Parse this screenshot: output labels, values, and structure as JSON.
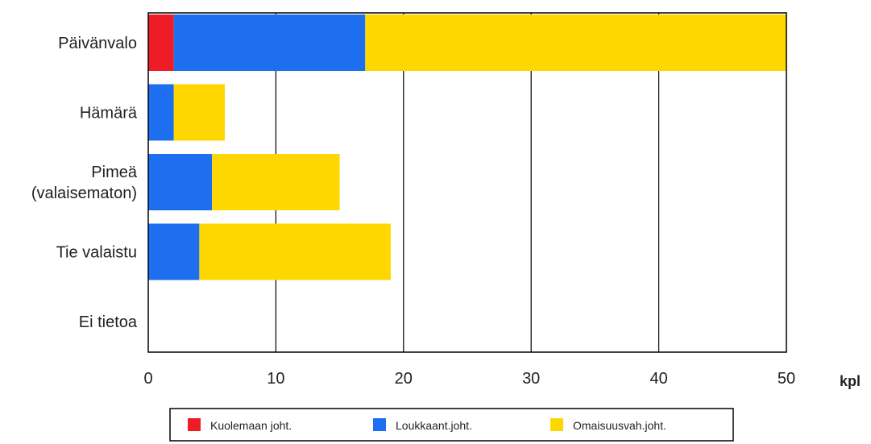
{
  "chart_data": {
    "type": "bar",
    "orientation": "horizontal",
    "stacked": true,
    "categories": [
      [
        "Päivänvalo"
      ],
      [
        "Hämärä"
      ],
      [
        "Pimeä",
        "(valaisematon)"
      ],
      [
        "Tie valaistu"
      ],
      [
        "Ei tietoa"
      ]
    ],
    "series": [
      {
        "name": "Kuolemaan joht.",
        "color": "#ee1c24",
        "values": [
          2,
          0,
          0,
          0,
          0
        ]
      },
      {
        "name": "Loukkaant.joht.",
        "color": "#1e6ff0",
        "values": [
          15,
          2,
          5,
          4,
          0
        ]
      },
      {
        "name": "Omaisuusvah.joht.",
        "color": "#ffd700",
        "values": [
          33,
          4,
          10,
          15,
          0
        ]
      }
    ],
    "xlim": [
      0,
      50
    ],
    "xticks": [
      "0",
      "10",
      "20",
      "30",
      "40",
      "50"
    ],
    "xunit": "kpl",
    "grid": "vertical",
    "legend_position": "bottom"
  }
}
